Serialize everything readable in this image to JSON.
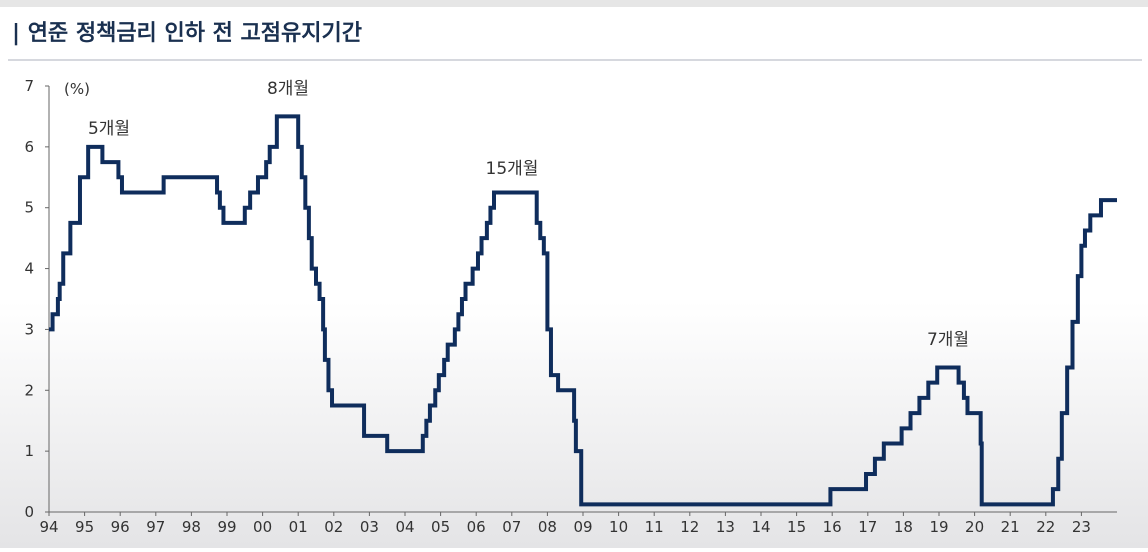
{
  "chart_data": {
    "type": "line",
    "title": "| 연준 정책금리 인하 전 고점유지기간",
    "y_unit": "(%)",
    "x": [
      1994.0,
      1994.1,
      1994.25,
      1994.3,
      1994.4,
      1994.6,
      1994.87,
      1995.1,
      1995.5,
      1995.95,
      1996.05,
      1997.22,
      1998.72,
      1998.8,
      1998.9,
      1999.5,
      1999.65,
      1999.87,
      2000.1,
      2000.2,
      2000.4,
      2001.0,
      2001.1,
      2001.2,
      2001.3,
      2001.38,
      2001.5,
      2001.6,
      2001.7,
      2001.75,
      2001.85,
      2001.95,
      2002.85,
      2003.5,
      2004.5,
      2004.6,
      2004.7,
      2004.85,
      2004.95,
      2005.1,
      2005.2,
      2005.4,
      2005.5,
      2005.6,
      2005.7,
      2005.9,
      2006.05,
      2006.15,
      2006.3,
      2006.4,
      2006.5,
      2007.7,
      2007.8,
      2007.9,
      2008.0,
      2008.1,
      2008.3,
      2008.75,
      2008.8,
      2008.95,
      2015.95,
      2016.95,
      2017.2,
      2017.45,
      2017.95,
      2018.2,
      2018.45,
      2018.7,
      2018.95,
      2019.55,
      2019.7,
      2019.8,
      2020.17,
      2020.2,
      2022.2,
      2022.35,
      2022.45,
      2022.6,
      2022.75,
      2022.9,
      2023.0,
      2023.1,
      2023.25,
      2023.55,
      2024.0
    ],
    "values": [
      3.0,
      3.25,
      3.5,
      3.75,
      4.25,
      4.75,
      5.5,
      6.0,
      5.75,
      5.5,
      5.25,
      5.5,
      5.25,
      5.0,
      4.75,
      5.0,
      5.25,
      5.5,
      5.75,
      6.0,
      6.5,
      6.0,
      5.5,
      5.0,
      4.5,
      4.0,
      3.75,
      3.5,
      3.0,
      2.5,
      2.0,
      1.75,
      1.25,
      1.0,
      1.25,
      1.5,
      1.75,
      2.0,
      2.25,
      2.5,
      2.75,
      3.0,
      3.25,
      3.5,
      3.75,
      4.0,
      4.25,
      4.5,
      4.75,
      5.0,
      5.25,
      4.75,
      4.5,
      4.25,
      3.0,
      2.25,
      2.0,
      1.5,
      1.0,
      0.125,
      0.375,
      0.625,
      0.875,
      1.125,
      1.375,
      1.625,
      1.875,
      2.125,
      2.375,
      2.125,
      1.875,
      1.625,
      1.125,
      0.125,
      0.375,
      0.875,
      1.625,
      2.375,
      3.125,
      3.875,
      4.375,
      4.625,
      4.875,
      5.125,
      5.125
    ],
    "color": "#0f2d5c",
    "annotations": [
      "5개월",
      "8개월",
      "15개월",
      "7개월"
    ],
    "xlim": [
      1994,
      2024
    ],
    "ylim": [
      0,
      7
    ],
    "yticks": [
      0,
      1,
      2,
      3,
      4,
      5,
      6,
      7
    ],
    "xticks": [
      {
        "value": 1994,
        "label": "94"
      },
      {
        "value": 1995,
        "label": "95"
      },
      {
        "value": 1996,
        "label": "96"
      },
      {
        "value": 1997,
        "label": "97"
      },
      {
        "value": 1998,
        "label": "98"
      },
      {
        "value": 1999,
        "label": "99"
      },
      {
        "value": 2000,
        "label": "00"
      },
      {
        "value": 2001,
        "label": "01"
      },
      {
        "value": 2002,
        "label": "02"
      },
      {
        "value": 2003,
        "label": "03"
      },
      {
        "value": 2004,
        "label": "04"
      },
      {
        "value": 2005,
        "label": "05"
      },
      {
        "value": 2006,
        "label": "06"
      },
      {
        "value": 2007,
        "label": "07"
      },
      {
        "value": 2008,
        "label": "08"
      },
      {
        "value": 2009,
        "label": "09"
      },
      {
        "value": 2010,
        "label": "10"
      },
      {
        "value": 2011,
        "label": "11"
      },
      {
        "value": 2012,
        "label": "12"
      },
      {
        "value": 2013,
        "label": "13"
      },
      {
        "value": 2014,
        "label": "14"
      },
      {
        "value": 2015,
        "label": "15"
      },
      {
        "value": 2016,
        "label": "16"
      },
      {
        "value": 2017,
        "label": "17"
      },
      {
        "value": 2018,
        "label": "18"
      },
      {
        "value": 2019,
        "label": "19"
      },
      {
        "value": 2020,
        "label": "20"
      },
      {
        "value": 2021,
        "label": "21"
      },
      {
        "value": 2022,
        "label": "22"
      },
      {
        "value": 2023,
        "label": "23"
      }
    ]
  }
}
